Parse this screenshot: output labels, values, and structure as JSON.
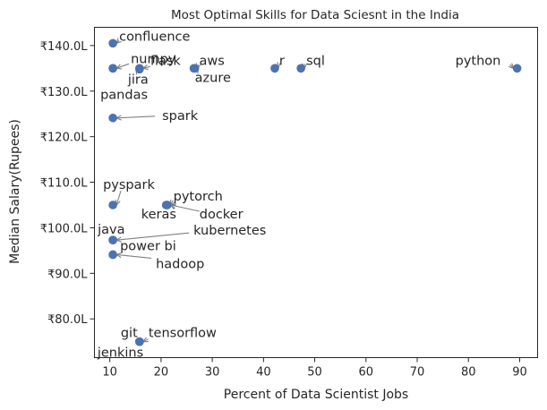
{
  "chart_data": {
    "type": "scatter",
    "title": "Most Optimal Skills for Data Sciesnt in the India",
    "xlabel": "Percent of Data Scientist Jobs",
    "ylabel": "Median Salary(Rupees)",
    "xlim": [
      7,
      93.5
    ],
    "ylim": [
      71.5,
      144
    ],
    "xticks": [
      10,
      20,
      30,
      40,
      50,
      60,
      70,
      80,
      90
    ],
    "yticks": [
      80,
      90,
      100,
      110,
      120,
      130,
      140
    ],
    "ytick_format": "₹{v}.0L",
    "grid": false,
    "point_color": "#4c72b0",
    "points": [
      {
        "label": "python",
        "x": 89.5,
        "y": 135.0
      },
      {
        "label": "sql",
        "x": 47.3,
        "y": 135.0
      },
      {
        "label": "r",
        "x": 42.2,
        "y": 135.0
      },
      {
        "label": "aws",
        "x": 26.4,
        "y": 135.0
      },
      {
        "label": "azure",
        "x": 26.6,
        "y": 135.0
      },
      {
        "label": "flask",
        "x": 15.8,
        "y": 135.0
      },
      {
        "label": "numpy",
        "x": 10.6,
        "y": 135.0
      },
      {
        "label": "jira",
        "x": 15.8,
        "y": 134.8
      },
      {
        "label": "confluence",
        "x": 10.6,
        "y": 140.5
      },
      {
        "label": "pandas",
        "x": 10.6,
        "y": 135.0
      },
      {
        "label": "spark",
        "x": 10.6,
        "y": 124.1
      },
      {
        "label": "pyspark",
        "x": 10.6,
        "y": 105.0
      },
      {
        "label": "pytorch",
        "x": 21.0,
        "y": 105.0
      },
      {
        "label": "keras",
        "x": 21.2,
        "y": 105.0
      },
      {
        "label": "docker",
        "x": 21.2,
        "y": 105.0
      },
      {
        "label": "kubernetes",
        "x": 10.6,
        "y": 97.3
      },
      {
        "label": "java",
        "x": 10.6,
        "y": 97.3
      },
      {
        "label": "power bi",
        "x": 10.6,
        "y": 94.1
      },
      {
        "label": "hadoop",
        "x": 10.6,
        "y": 94.1
      },
      {
        "label": "git",
        "x": 15.8,
        "y": 75.0
      },
      {
        "label": "tensorflow",
        "x": 15.8,
        "y": 75.0
      },
      {
        "label": "jenkins",
        "x": 15.8,
        "y": 75.0
      }
    ]
  }
}
